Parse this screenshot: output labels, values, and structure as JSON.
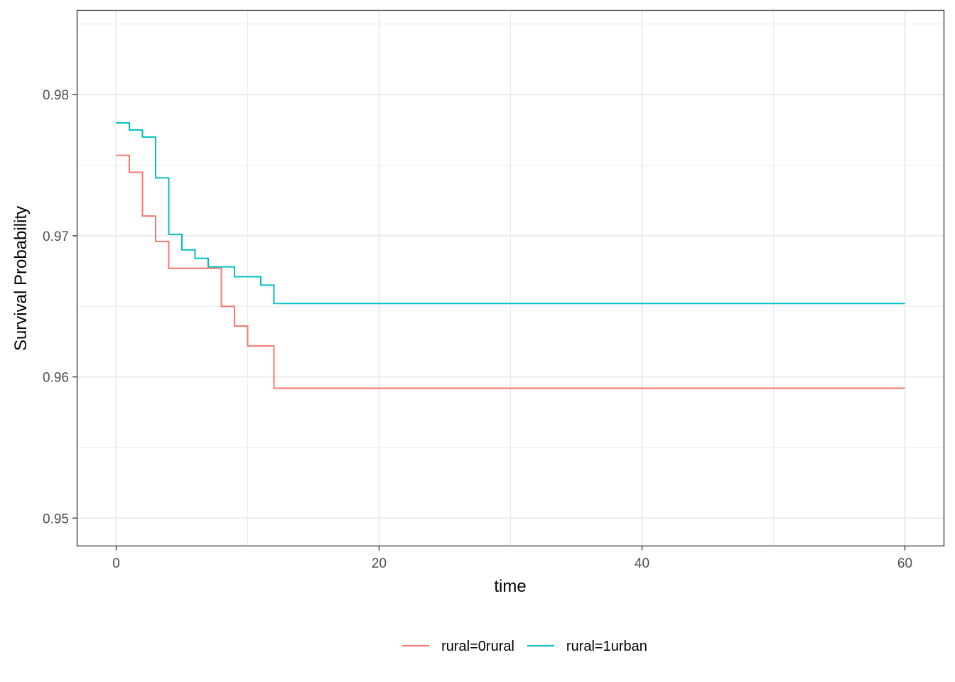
{
  "chart_data": {
    "type": "line",
    "step": true,
    "xlabel": "time",
    "ylabel": "Survival Probability",
    "xlim": [
      -3,
      63
    ],
    "ylim": [
      0.948,
      0.986
    ],
    "x_ticks": [
      0,
      20,
      40,
      60
    ],
    "y_ticks": [
      0.95,
      0.96,
      0.97,
      0.98
    ],
    "x_tick_labels": [
      "0",
      "20",
      "40",
      "60"
    ],
    "y_tick_labels": [
      "0.95",
      "0.96",
      "0.97",
      "0.98"
    ],
    "grid": true,
    "legend_position": "bottom",
    "series": [
      {
        "name": "rural=0rural",
        "color": "#F8766D",
        "x": [
          0,
          1,
          2,
          3,
          4,
          8,
          9,
          10,
          12,
          60
        ],
        "y": [
          0.9757,
          0.9745,
          0.9714,
          0.9696,
          0.9677,
          0.965,
          0.9636,
          0.9622,
          0.9592,
          0.9592
        ]
      },
      {
        "name": "rural=1urban",
        "color": "#00BFC4",
        "x": [
          0,
          1,
          2,
          3,
          4,
          5,
          6,
          7,
          9,
          11,
          12,
          60
        ],
        "y": [
          0.978,
          0.9775,
          0.977,
          0.9741,
          0.9701,
          0.969,
          0.9684,
          0.9678,
          0.9671,
          0.9665,
          0.9652,
          0.9652
        ]
      }
    ]
  }
}
